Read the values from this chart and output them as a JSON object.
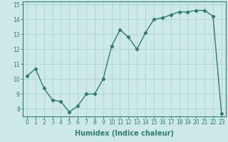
{
  "x": [
    0,
    1,
    2,
    3,
    4,
    5,
    6,
    7,
    8,
    9,
    10,
    11,
    12,
    13,
    14,
    15,
    16,
    17,
    18,
    19,
    20,
    21,
    22,
    23
  ],
  "y": [
    10.2,
    10.7,
    9.4,
    8.6,
    8.5,
    7.8,
    8.2,
    9.0,
    9.0,
    10.0,
    12.2,
    13.3,
    12.8,
    12.0,
    13.1,
    14.0,
    14.1,
    14.3,
    14.5,
    14.5,
    14.6,
    14.6,
    14.2,
    7.7
  ],
  "line_color": "#2e7d6e",
  "marker": "D",
  "marker_size": 2.2,
  "bg_color": "#cce8e8",
  "grid_color": "#afd4d4",
  "xlabel": "Humidex (Indice chaleur)",
  "xlabel_fontsize": 7,
  "xlim": [
    -0.5,
    23.5
  ],
  "ylim": [
    7.5,
    15.2
  ],
  "yticks": [
    8,
    9,
    10,
    11,
    12,
    13,
    14,
    15
  ],
  "xticks": [
    0,
    1,
    2,
    3,
    4,
    5,
    6,
    7,
    8,
    9,
    10,
    11,
    12,
    13,
    14,
    15,
    16,
    17,
    18,
    19,
    20,
    21,
    22,
    23
  ],
  "tick_fontsize": 5.5,
  "line_width": 1.0
}
